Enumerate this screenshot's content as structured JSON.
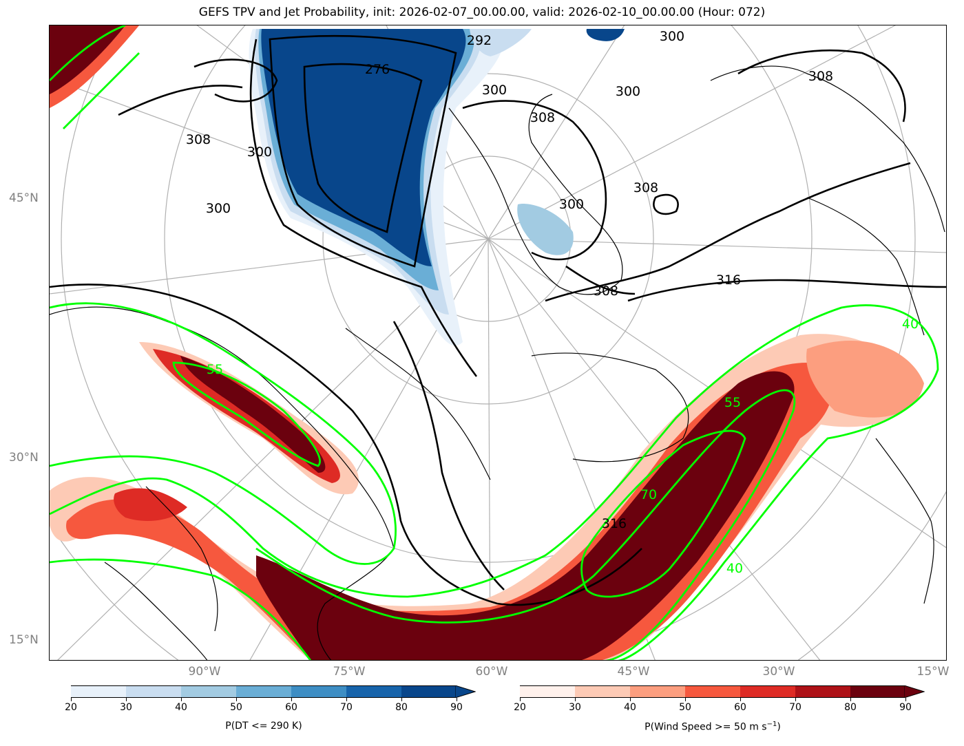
{
  "title": "GEFS TPV and Jet Probability, init: 2026-02-07_00.00.00, valid: 2026-02-10_00.00.00 (Hour: 072)",
  "lat_labels": [
    "45°N",
    "30°N",
    "15°N"
  ],
  "lon_labels": [
    "90°W",
    "75°W",
    "60°W",
    "45°W",
    "30°W",
    "15°W"
  ],
  "theta_contour_labels": [
    "276",
    "292",
    "300",
    "300",
    "300",
    "300",
    "300",
    "300",
    "308",
    "308",
    "308",
    "308",
    "308",
    "316",
    "316"
  ],
  "jet_contour_labels": [
    "40",
    "40",
    "55",
    "55",
    "70"
  ],
  "colorbar_dt": {
    "label": "P(DT <= 290 K)",
    "ticks": [
      "20",
      "30",
      "40",
      "50",
      "60",
      "70",
      "80",
      "90"
    ],
    "colors": [
      "#e8f1fa",
      "#c9ddf0",
      "#a2cbe2",
      "#6aaed6",
      "#3e8ec4",
      "#1764ab",
      "#08468b"
    ]
  },
  "colorbar_wind": {
    "label": "P(Wind Speed >= 50 m s",
    "label_exp": "−1",
    "label_end": ")",
    "ticks": [
      "20",
      "30",
      "40",
      "50",
      "60",
      "70",
      "80",
      "90"
    ],
    "colors": [
      "#fff1ec",
      "#fdcab5",
      "#fc9e7f",
      "#f6583e",
      "#de2b25",
      "#ae1117",
      "#6b010e"
    ]
  },
  "colors": {
    "jet_contour": "#00ff00",
    "theta_contour": "#000000",
    "graticule": "#b0b0b0"
  }
}
